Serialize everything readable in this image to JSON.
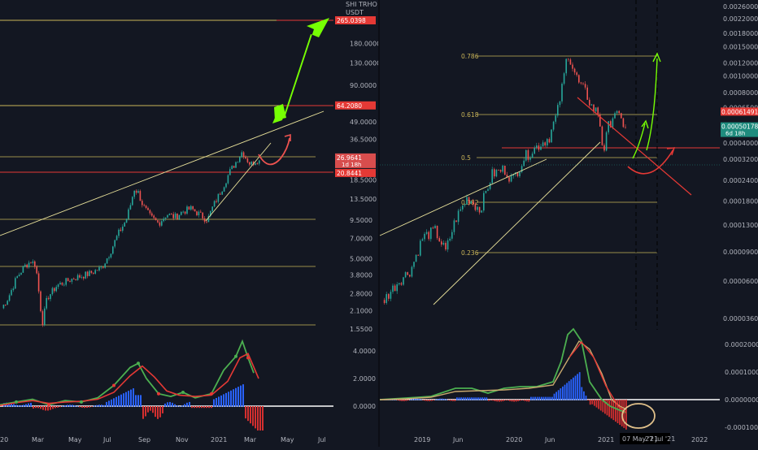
{
  "left": {
    "currency_label": "USDT",
    "y_ticks": [
      {
        "label": "265.0398",
        "value": 265.0398,
        "tag": true,
        "tag_color": "#e53935"
      },
      {
        "label": "180.0000",
        "value": 180
      },
      {
        "label": "130.0000",
        "value": 130
      },
      {
        "label": "90.0000",
        "value": 90
      },
      {
        "label": "64.2080",
        "value": 64.208,
        "tag": true,
        "tag_color": "#e53935"
      },
      {
        "label": "49.0000",
        "value": 49
      },
      {
        "label": "36.5000",
        "value": 36.5
      },
      {
        "label": "26.9641",
        "value": 26.9641,
        "tag": true,
        "tag_color": "#d84d4d",
        "sub": "1d 18h"
      },
      {
        "label": "20.8441",
        "value": 20.8441,
        "tag": true,
        "tag_color": "#e53935"
      },
      {
        "label": "18.5000",
        "value": 18.5
      },
      {
        "label": "13.5000",
        "value": 13.5
      },
      {
        "label": "9.5000",
        "value": 9.5
      },
      {
        "label": "7.0000",
        "value": 7
      },
      {
        "label": "5.0000",
        "value": 5
      },
      {
        "label": "3.8000",
        "value": 3.8
      },
      {
        "label": "2.8000",
        "value": 2.8
      },
      {
        "label": "2.1000",
        "value": 2.1
      },
      {
        "label": "1.5500",
        "value": 1.55
      }
    ],
    "osc_ticks": [
      {
        "label": "4.0000",
        "value": 4
      },
      {
        "label": "2.0000",
        "value": 2
      },
      {
        "label": "0.0000",
        "value": 0
      }
    ],
    "x_labels": [
      "Mar",
      "May",
      "Jul",
      "Sep",
      "Nov",
      "2021",
      "Mar",
      "May",
      "Jul"
    ],
    "first_x_label": "20"
  },
  "right": {
    "y_ticks": [
      {
        "label": "0.00260000",
        "value": 0.0026
      },
      {
        "label": "0.00220000",
        "value": 0.0022
      },
      {
        "label": "0.00180000",
        "value": 0.0018
      },
      {
        "label": "0.00150000",
        "value": 0.0015
      },
      {
        "label": "0.00120000",
        "value": 0.0012
      },
      {
        "label": "0.00100000",
        "value": 0.001
      },
      {
        "label": "0.00080000",
        "value": 0.0008
      },
      {
        "label": "0.00065000",
        "value": 0.00065
      },
      {
        "label": "0.00061491",
        "value": 0.00061491,
        "tag": true,
        "tag_color": "#e53935"
      },
      {
        "label": "0.00050178",
        "value": 0.00050178,
        "tag": true,
        "tag_color": "#1e8c7e",
        "sub": "6d 18h"
      },
      {
        "label": "0.00040000",
        "value": 0.0004
      },
      {
        "label": "0.00032000",
        "value": 0.00032
      },
      {
        "label": "0.00024000",
        "value": 0.00024
      },
      {
        "label": "0.00018000",
        "value": 0.00018
      },
      {
        "label": "0.00013000",
        "value": 0.00013
      },
      {
        "label": "0.00009000",
        "value": 9e-05
      },
      {
        "label": "0.00006000",
        "value": 6e-05
      },
      {
        "label": "0.00003600",
        "value": 3.6e-05
      }
    ],
    "osc_ticks": [
      {
        "label": "0.00020000",
        "value": 0.0002
      },
      {
        "label": "0.00010000",
        "value": 0.0001
      },
      {
        "label": "0.00000000",
        "value": 0
      },
      {
        "label": "-0.00010000",
        "value": -0.0001
      }
    ],
    "fib_levels": [
      {
        "label": "0.786"
      },
      {
        "label": "0.618"
      },
      {
        "label": "0.5"
      },
      {
        "label": "0.382"
      },
      {
        "label": "0.236"
      }
    ],
    "x_labels": [
      "2019",
      "Jun",
      "2020",
      "Jun",
      "2021",
      "2022"
    ],
    "date_markers": [
      "07 May '21",
      "27 Jul '21"
    ]
  },
  "colors": {
    "background": "#131722",
    "up_candle": "#26a69a",
    "down_candle": "#ef5350",
    "yellow_line": "#c9b458",
    "red_line": "#e53935",
    "green_arrow": "#76ff03",
    "osc_green": "#4caf50",
    "osc_red": "#e53935",
    "hist_blue": "#2962ff",
    "hist_red": "#d32f2f"
  }
}
